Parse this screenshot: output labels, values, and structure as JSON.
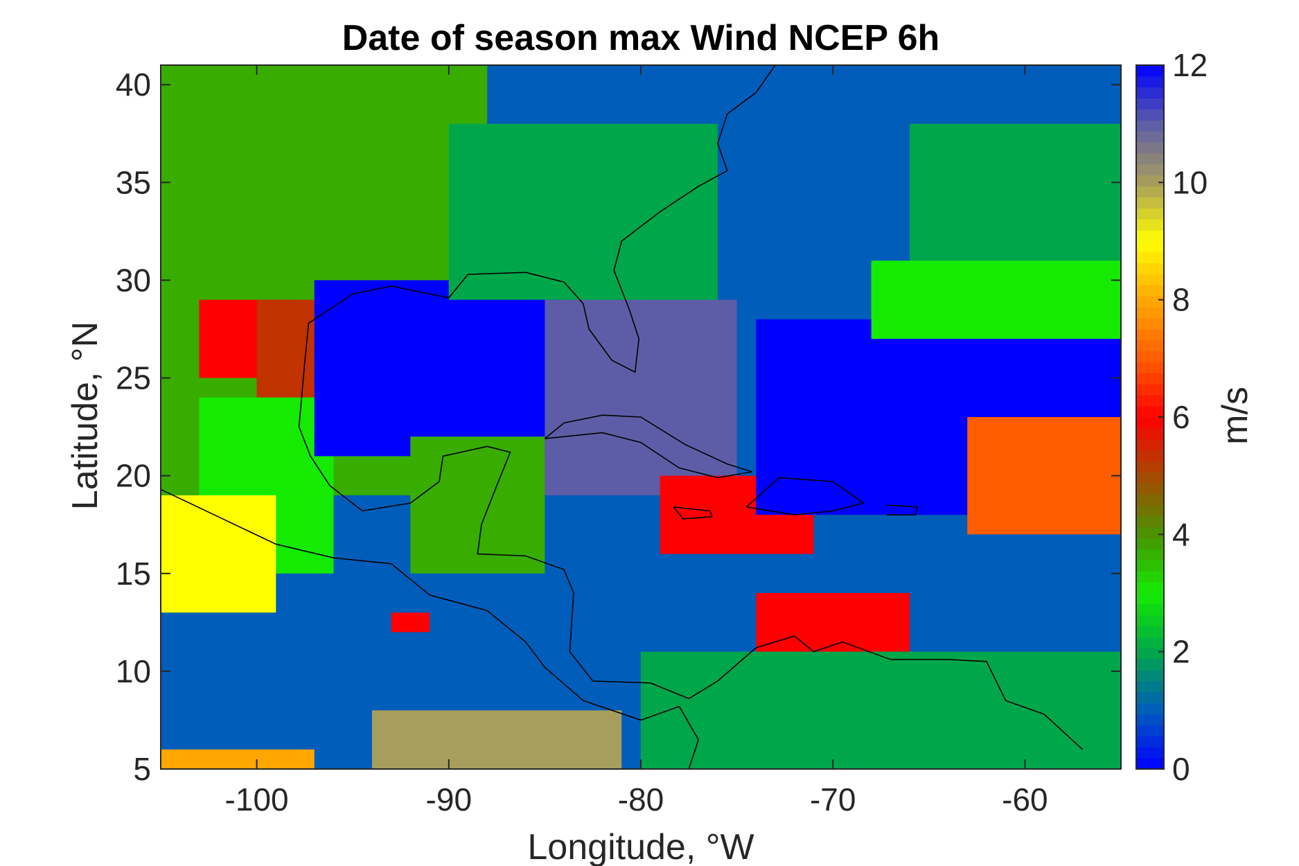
{
  "chart_data": {
    "type": "heatmap",
    "title": "Date of season max Wind NCEP 6h",
    "xlabel": "Longitude, °W",
    "ylabel": "Latitude, °N",
    "colorbar_label": "m/s",
    "xlim": [
      -105,
      -55
    ],
    "ylim": [
      5,
      41
    ],
    "xticks": [
      -100,
      -90,
      -80,
      -70,
      -60
    ],
    "yticks": [
      5,
      10,
      15,
      20,
      25,
      30,
      35,
      40
    ],
    "colorbar_ticks": [
      0,
      2,
      4,
      6,
      8,
      10,
      12
    ],
    "colorbar_range": [
      0,
      12
    ],
    "colormap": "parula-jet variant (blue-green-red-yellow-grey-blue)",
    "grid": false,
    "regions": [
      {
        "name": "background",
        "value": 1.0,
        "lon": [
          -105,
          -55
        ],
        "lat": [
          5,
          41
        ]
      },
      {
        "name": "northwest land",
        "value": 3.7,
        "lon": [
          -105,
          -88
        ],
        "lat": [
          19,
          41
        ]
      },
      {
        "name": "texas red",
        "value": 6.0,
        "lon": [
          -103,
          -98
        ],
        "lat": [
          25,
          29
        ]
      },
      {
        "name": "texas dark orange",
        "value": 5.3,
        "lon": [
          -100,
          -96
        ],
        "lat": [
          24,
          29
        ]
      },
      {
        "name": "mexico green",
        "value": 3.0,
        "lon": [
          -103,
          -96
        ],
        "lat": [
          15,
          24
        ]
      },
      {
        "name": "pacific yellow",
        "value": 9.0,
        "lon": [
          -105,
          -99
        ],
        "lat": [
          13,
          19
        ]
      },
      {
        "name": "gulf of mexico blue",
        "value": 0.0,
        "lon": [
          -97,
          -84
        ],
        "lat": [
          21,
          30
        ]
      },
      {
        "name": "yucatan green",
        "value": 3.7,
        "lon": [
          -92,
          -85
        ],
        "lat": [
          15,
          22
        ]
      },
      {
        "name": "florida/cuba purple",
        "value": 11.0,
        "lon": [
          -85,
          -75
        ],
        "lat": [
          19,
          29
        ]
      },
      {
        "name": "southeast us mix",
        "value": 2.0,
        "lon": [
          -90,
          -76
        ],
        "lat": [
          29,
          38
        ]
      },
      {
        "name": "caribbean red",
        "value": 6.0,
        "lon": [
          -79,
          -71
        ],
        "lat": [
          16,
          20
        ]
      },
      {
        "name": "hispaniola orange",
        "value": 7.0,
        "lon": [
          -72,
          -67
        ],
        "lat": [
          18,
          21
        ]
      },
      {
        "name": "atlantic blue",
        "value": 0.0,
        "lon": [
          -74,
          -55
        ],
        "lat": [
          18,
          28
        ]
      },
      {
        "name": "atlantic east orange",
        "value": 7.0,
        "lon": [
          -63,
          -55
        ],
        "lat": [
          17,
          23
        ]
      },
      {
        "name": "atlantic green",
        "value": 2.0,
        "lon": [
          -66,
          -55
        ],
        "lat": [
          30,
          38
        ]
      },
      {
        "name": "atlantic bright green",
        "value": 3.0,
        "lon": [
          -68,
          -55
        ],
        "lat": [
          27,
          31
        ]
      },
      {
        "name": "caribbean south red",
        "value": 6.0,
        "lon": [
          -74,
          -66
        ],
        "lat": [
          11,
          14
        ]
      },
      {
        "name": "south america green",
        "value": 2.0,
        "lon": [
          -80,
          -55
        ],
        "lat": [
          5,
          11
        ]
      },
      {
        "name": "pacific olive",
        "value": 10.0,
        "lon": [
          -94,
          -81
        ],
        "lat": [
          5,
          8
        ]
      },
      {
        "name": "pacific orange",
        "value": 8.0,
        "lon": [
          -105,
          -97
        ],
        "lat": [
          5,
          6
        ]
      },
      {
        "name": "pacific small red",
        "value": 6.0,
        "lon": [
          -93,
          -91
        ],
        "lat": [
          12,
          13
        ]
      }
    ]
  }
}
